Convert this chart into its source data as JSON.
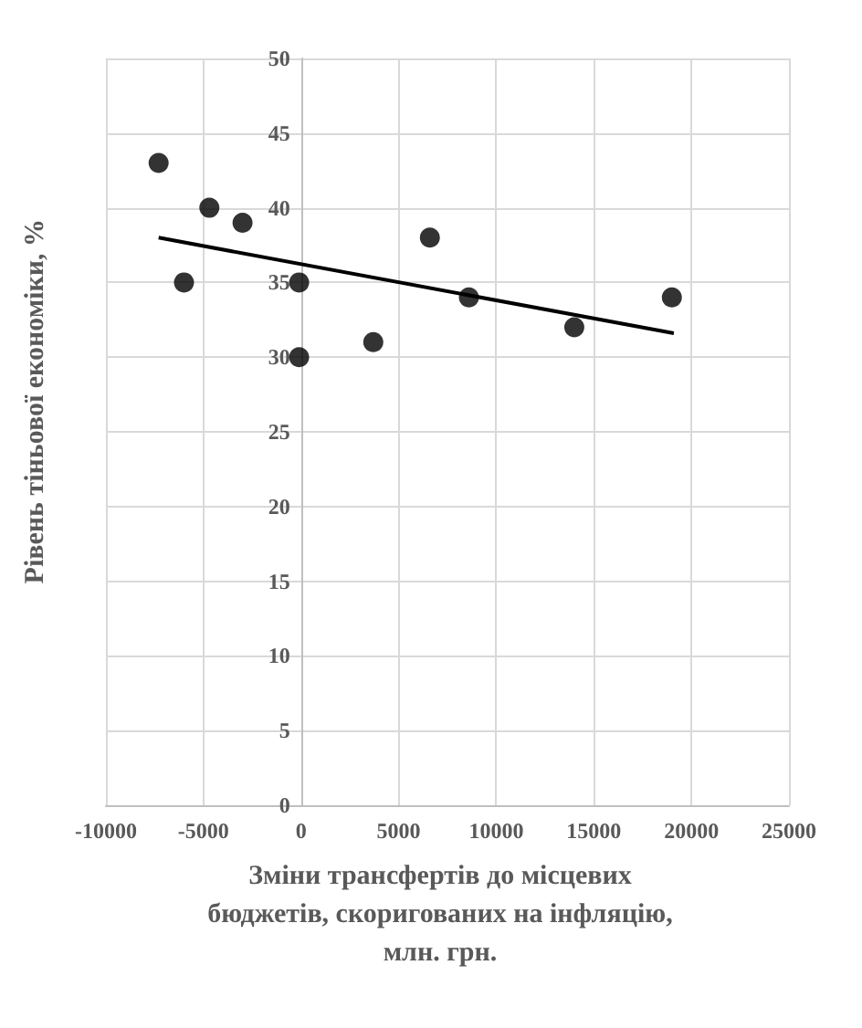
{
  "chart_data": {
    "type": "scatter",
    "xlabel": "Зміни трансфертів до місцевих бюджетів, скоригованих на інфляцію, млн. грн.",
    "ylabel": "Рівень тіньової економіки, %",
    "x": [
      -7300,
      -6000,
      -4700,
      -3000,
      -100,
      -100,
      3700,
      6600,
      8600,
      14000,
      19000
    ],
    "series": [
      {
        "color": "#000000",
        "values": [
          43,
          35,
          40,
          39,
          35,
          30,
          31,
          38,
          34,
          32,
          34
        ]
      },
      {
        "type": "line",
        "color": "#000000",
        "marker": "none",
        "x": [
          -7300,
          19100
        ],
        "values": [
          38,
          31.6
        ]
      }
    ],
    "xlim": [
      -10000,
      25000
    ],
    "xticks": [
      -10000,
      -5000,
      0,
      5000,
      10000,
      15000,
      20000,
      25000
    ],
    "ylim": [
      0,
      50
    ],
    "yticks": [
      0,
      5,
      10,
      15,
      20,
      25,
      30,
      35,
      40,
      45,
      50
    ],
    "grid": true,
    "marker": "circle"
  }
}
